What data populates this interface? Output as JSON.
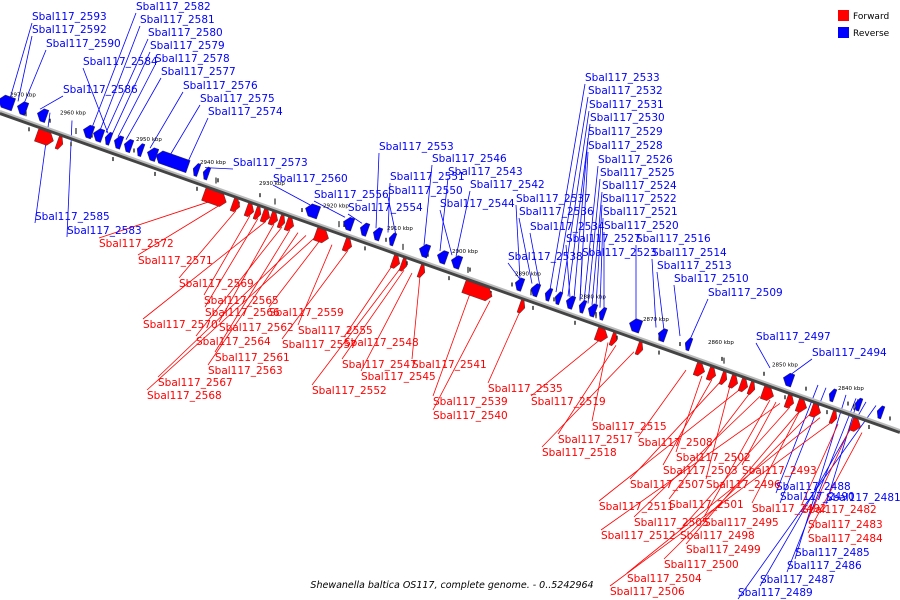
{
  "caption": "Shewanella baltica OS117, complete genome. - 0..5242964",
  "legend": [
    {
      "label": "Forward",
      "color": "#ff0000"
    },
    {
      "label": "Reverse",
      "color": "#0000ff"
    }
  ],
  "colors": {
    "forward": "#ff0000",
    "reverse": "#0000ff",
    "backbone": "#888888"
  },
  "kbp_marks": [
    "2970 kbp",
    "2960 kbp",
    "2950 kbp",
    "2940 kbp",
    "2930 kbp",
    "2920 kbp",
    "2910 kbp",
    "2900 kbp",
    "2890 kbp",
    "2880 kbp",
    "2870 kbp",
    "2860 kbp",
    "2850 kbp",
    "2840 kbp"
  ],
  "reverse_labels": [
    "Sbal117_2593",
    "Sbal117_2592",
    "Sbal117_2590",
    "Sbal117_2582",
    "Sbal117_2581",
    "Sbal117_2580",
    "Sbal117_2579",
    "Sbal117_2578",
    "Sbal117_2584",
    "Sbal117_2577",
    "Sbal117_2586",
    "Sbal117_2576",
    "Sbal117_2575",
    "Sbal117_2574",
    "Sbal117_2573",
    "Sbal117_2560",
    "Sbal117_2556",
    "Sbal117_2554",
    "Sbal117_2553",
    "Sbal117_2551",
    "Sbal117_2550",
    "Sbal117_2546",
    "Sbal117_2543",
    "Sbal117_2542",
    "Sbal117_2544",
    "Sbal117_2537",
    "Sbal117_2536",
    "Sbal117_2534",
    "Sbal117_2538",
    "Sbal117_2533",
    "Sbal117_2532",
    "Sbal117_2531",
    "Sbal117_2530",
    "Sbal117_2529",
    "Sbal117_2528",
    "Sbal117_2526",
    "Sbal117_2525",
    "Sbal117_2524",
    "Sbal117_2522",
    "Sbal117_2521",
    "Sbal117_2520",
    "Sbal117_2527",
    "Sbal117_2523",
    "Sbal117_2516",
    "Sbal117_2514",
    "Sbal117_2513",
    "Sbal117_2510",
    "Sbal117_2509",
    "Sbal117_2497",
    "Sbal117_2494",
    "Sbal117_2585",
    "Sbal117_2583",
    "Sbal117_2488",
    "Sbal117_2490",
    "Sbal117_2481",
    "Sbal117_2485",
    "Sbal117_2486",
    "Sbal117_2487",
    "Sbal117_2489"
  ],
  "forward_labels": [
    "Sbal117_2572",
    "Sbal117_2571",
    "Sbal117_2569",
    "Sbal117_2565",
    "Sbal117_2566",
    "Sbal117_2570",
    "Sbal117_2562",
    "Sbal117_2564",
    "Sbal117_2561",
    "Sbal117_2563",
    "Sbal117_2567",
    "Sbal117_2568",
    "Sbal117_2559",
    "Sbal117_2555",
    "Sbal117_2557",
    "Sbal117_2548",
    "Sbal117_2552",
    "Sbal117_2547",
    "Sbal117_2545",
    "Sbal117_2541",
    "Sbal117_2539",
    "Sbal117_2540",
    "Sbal117_2535",
    "Sbal117_2519",
    "Sbal117_2515",
    "Sbal117_2517",
    "Sbal117_2518",
    "Sbal117_2508",
    "Sbal117_2502",
    "Sbal117_2503",
    "Sbal117_2507",
    "Sbal117_2496",
    "Sbal117_2511",
    "Sbal117_2501",
    "Sbal117_2505",
    "Sbal117_2495",
    "Sbal117_2512",
    "Sbal117_2498",
    "Sbal117_2499",
    "Sbal117_2500",
    "Sbal117_2504",
    "Sbal117_2506",
    "Sbal117_2493",
    "Sbal117_2492",
    "Sbal117_2482",
    "Sbal117_2483",
    "Sbal117_2484"
  ]
}
